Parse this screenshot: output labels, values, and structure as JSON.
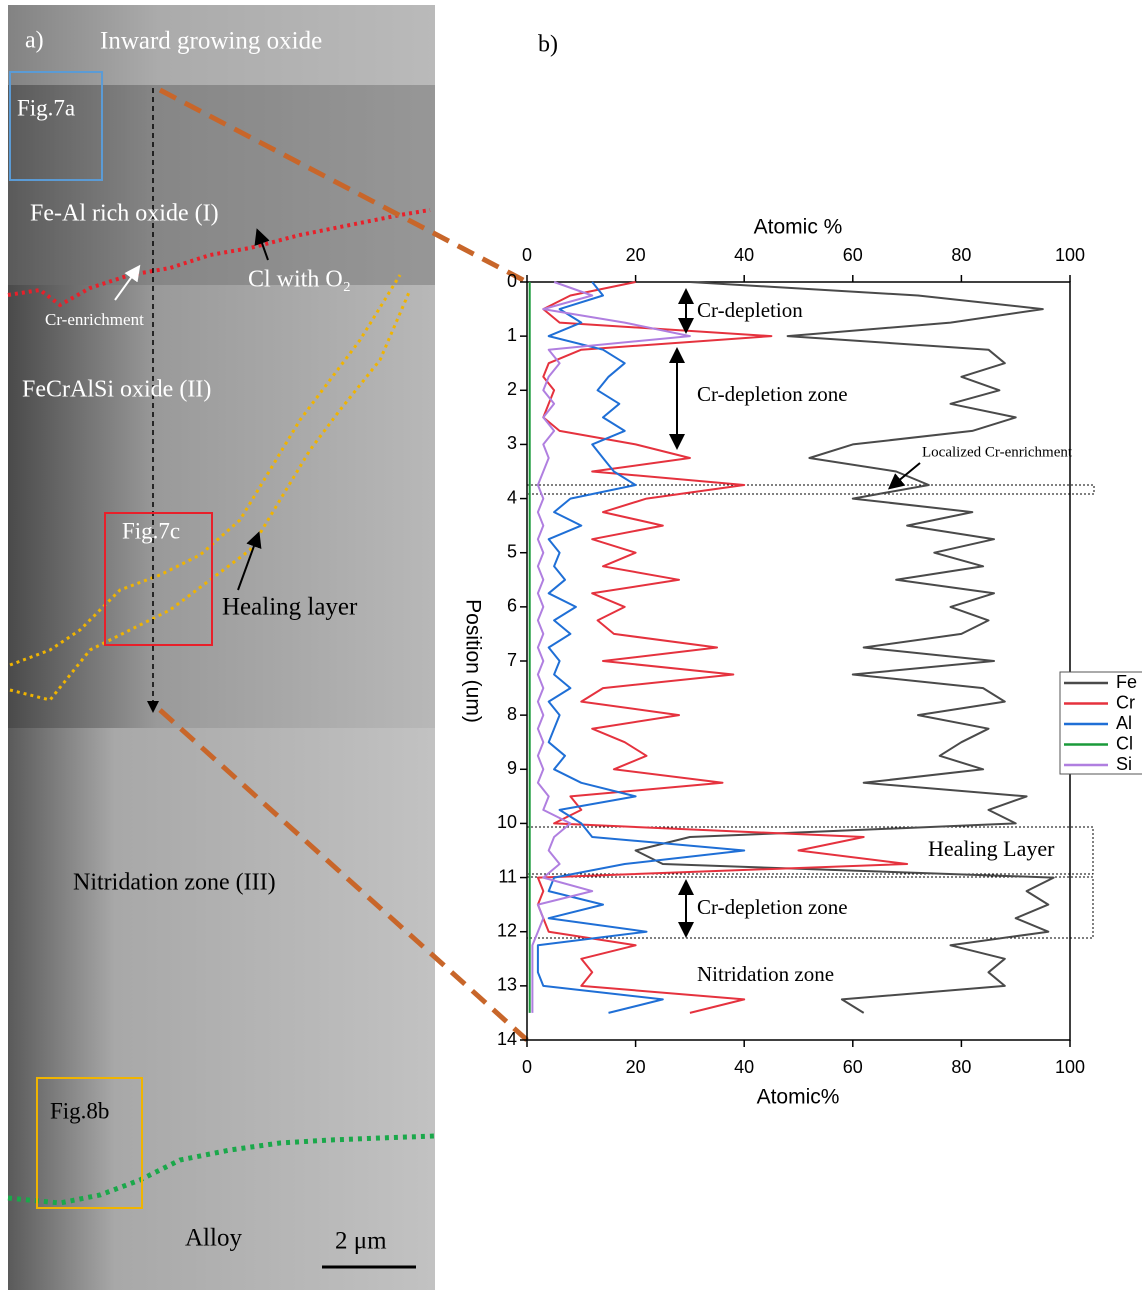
{
  "micrograph": {
    "labels": [
      "a)",
      "Inward growing oxide",
      "Fig.7a",
      "Fe-Al rich oxide (I)",
      "Cl with O₂",
      "Cr-enrichment",
      "FeCrAlSi oxide (II)",
      "Fig.7c",
      "Healing layer",
      "Nitridation zone (III)",
      "Fig.8b",
      "Alloy",
      "2 μm"
    ]
  },
  "chart_data": {
    "type": "line",
    "orientation": "vertical",
    "panel_label": "b)",
    "x_label": "Position (um)",
    "y_label_top": "Atomic %",
    "y_label_bottom": "Atomic%",
    "x": [
      0,
      0.25,
      0.5,
      0.75,
      1,
      1.25,
      1.5,
      1.75,
      2,
      2.25,
      2.5,
      2.75,
      3,
      3.25,
      3.5,
      3.75,
      4,
      4.25,
      4.5,
      4.75,
      5,
      5.25,
      5.5,
      5.75,
      6,
      6.25,
      6.5,
      6.75,
      7,
      7.25,
      7.5,
      7.75,
      8,
      8.25,
      8.5,
      8.75,
      9,
      9.25,
      9.5,
      9.75,
      10,
      10.25,
      10.5,
      10.75,
      11,
      11.25,
      11.5,
      11.75,
      12,
      12.25,
      12.5,
      12.75,
      13,
      13.25,
      13.5
    ],
    "xlim": [
      0,
      14
    ],
    "xticks": [
      0,
      1,
      2,
      3,
      4,
      5,
      6,
      7,
      8,
      9,
      10,
      11,
      12,
      13,
      14
    ],
    "ylim": [
      0,
      100
    ],
    "yticks": [
      0,
      20,
      40,
      60,
      80,
      100
    ],
    "series": [
      {
        "name": "Fe",
        "color": "#4a4a4a",
        "values": [
          30,
          72,
          95,
          78,
          48,
          85,
          88,
          80,
          87,
          78,
          90,
          82,
          60,
          52,
          68,
          74,
          60,
          82,
          70,
          86,
          75,
          84,
          68,
          86,
          78,
          85,
          80,
          62,
          86,
          60,
          84,
          88,
          72,
          85,
          80,
          76,
          84,
          62,
          92,
          85,
          90,
          30,
          20,
          25,
          97,
          92,
          96,
          90,
          96,
          78,
          88,
          85,
          88,
          58,
          62
        ]
      },
      {
        "name": "Cr",
        "color": "#e5323e",
        "values": [
          20,
          8,
          3,
          6,
          45,
          10,
          4,
          3,
          5,
          4,
          3,
          6,
          20,
          30,
          12,
          40,
          22,
          14,
          25,
          12,
          20,
          14,
          28,
          12,
          18,
          13,
          16,
          35,
          14,
          38,
          14,
          10,
          28,
          12,
          18,
          22,
          16,
          36,
          8,
          10,
          5,
          62,
          50,
          70,
          2,
          3,
          2,
          3,
          4,
          20,
          10,
          12,
          10,
          40,
          30
        ]
      },
      {
        "name": "Al",
        "color": "#1f6fd6",
        "values": [
          12,
          14,
          6,
          10,
          4,
          14,
          18,
          15,
          13,
          17,
          14,
          18,
          12,
          14,
          16,
          20,
          8,
          5,
          10,
          4,
          6,
          5,
          7,
          4,
          9,
          5,
          8,
          4,
          6,
          5,
          8,
          4,
          6,
          5,
          4,
          7,
          5,
          10,
          20,
          6,
          10,
          12,
          40,
          18,
          5,
          4,
          14,
          4,
          22,
          2,
          2,
          2,
          3,
          25,
          15
        ]
      },
      {
        "name": "Cl",
        "color": "#1a9a3a",
        "values": [
          0.5,
          0.5,
          0.5,
          0.5,
          0.5,
          0.5,
          0.5,
          0.5,
          0.5,
          0.5,
          0.5,
          0.5,
          0.5,
          0.5,
          0.5,
          0.5,
          0.5,
          0.5,
          0.5,
          0.5,
          0.5,
          0.5,
          0.5,
          0.5,
          0.5,
          0.5,
          0.5,
          0.5,
          0.5,
          0.5,
          0.5,
          0.5,
          0.5,
          0.5,
          0.5,
          0.5,
          0.5,
          0.5,
          0.5,
          0.5,
          0.5,
          0.5,
          0.5,
          0.5,
          0.5,
          0.5,
          0.5,
          0.5,
          0.5,
          0.5,
          0.5,
          0.5,
          0.5,
          0.5,
          0.5
        ]
      },
      {
        "name": "Si",
        "color": "#b07fe0",
        "values": [
          5,
          12,
          3,
          18,
          30,
          4,
          6,
          4,
          3,
          5,
          3,
          5,
          3,
          4,
          3,
          2,
          3,
          2,
          3,
          2,
          3,
          2,
          3,
          2,
          3,
          2,
          3,
          2,
          3,
          2,
          3,
          2,
          3,
          2,
          3,
          2,
          3,
          2,
          4,
          3,
          8,
          5,
          4,
          6,
          3,
          12,
          2,
          3,
          2,
          1,
          1,
          1,
          1,
          1,
          1
        ]
      }
    ],
    "annotations": [
      "Cr-depletion",
      "Cr-depletion zone",
      "Localized Cr-enrichment",
      "Healing Layer",
      "Cr-depletion zone",
      "Nitridation zone"
    ]
  }
}
